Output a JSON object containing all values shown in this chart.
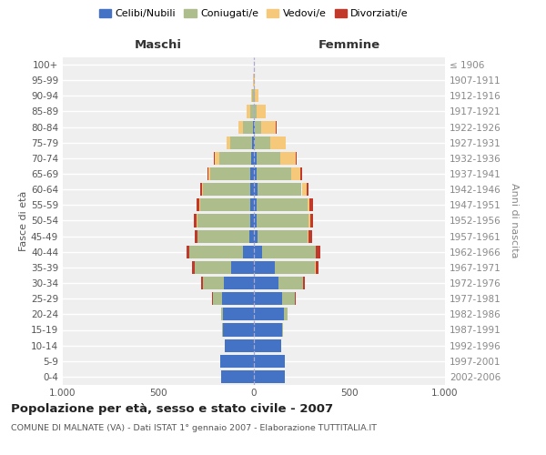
{
  "age_groups": [
    "100+",
    "95-99",
    "90-94",
    "85-89",
    "80-84",
    "75-79",
    "70-74",
    "65-69",
    "60-64",
    "55-59",
    "50-54",
    "45-49",
    "40-44",
    "35-39",
    "30-34",
    "25-29",
    "20-24",
    "15-19",
    "10-14",
    "5-9",
    "0-4"
  ],
  "birth_years": [
    "≤ 1906",
    "1907-1911",
    "1912-1916",
    "1917-1921",
    "1922-1926",
    "1927-1931",
    "1932-1936",
    "1937-1941",
    "1942-1946",
    "1947-1951",
    "1952-1956",
    "1957-1961",
    "1962-1966",
    "1967-1971",
    "1972-1976",
    "1977-1981",
    "1982-1986",
    "1987-1991",
    "1992-1996",
    "1997-2001",
    "2002-2006"
  ],
  "males_celibi": [
    0,
    0,
    1,
    2,
    5,
    8,
    12,
    18,
    20,
    18,
    18,
    25,
    58,
    118,
    155,
    168,
    162,
    163,
    152,
    178,
    172
  ],
  "males_coniugati": [
    0,
    2,
    8,
    18,
    52,
    115,
    170,
    210,
    248,
    265,
    278,
    268,
    278,
    192,
    112,
    48,
    10,
    2,
    0,
    0,
    0
  ],
  "males_vedovi": [
    0,
    1,
    6,
    18,
    22,
    18,
    22,
    8,
    4,
    2,
    2,
    2,
    0,
    0,
    0,
    0,
    0,
    0,
    0,
    0,
    0
  ],
  "males_divorziati": [
    0,
    0,
    0,
    0,
    0,
    2,
    5,
    8,
    10,
    14,
    14,
    14,
    18,
    14,
    8,
    2,
    0,
    0,
    0,
    0,
    0
  ],
  "fem_nubili": [
    0,
    0,
    1,
    2,
    4,
    7,
    12,
    15,
    18,
    16,
    16,
    20,
    42,
    108,
    128,
    148,
    158,
    148,
    142,
    162,
    162
  ],
  "fem_coniugate": [
    0,
    1,
    5,
    10,
    33,
    78,
    128,
    182,
    232,
    265,
    272,
    262,
    282,
    212,
    128,
    68,
    17,
    2,
    0,
    0,
    0
  ],
  "fem_vedove": [
    0,
    4,
    18,
    48,
    78,
    82,
    78,
    48,
    24,
    10,
    5,
    5,
    2,
    2,
    2,
    0,
    0,
    0,
    0,
    0,
    0
  ],
  "fem_divorziate": [
    0,
    0,
    0,
    0,
    2,
    2,
    7,
    9,
    11,
    17,
    17,
    17,
    22,
    17,
    10,
    2,
    2,
    0,
    0,
    0,
    0
  ],
  "color_celibi": "#4472C4",
  "color_coniugati": "#ADBE8C",
  "color_vedovi": "#F5C87A",
  "color_divorziati": "#C0392B",
  "title": "Popolazione per età, sesso e stato civile - 2007",
  "subtitle": "COMUNE DI MALNATE (VA) - Dati ISTAT 1° gennaio 2007 - Elaborazione TUTTITALIA.IT",
  "maschi_label": "Maschi",
  "femmine_label": "Femmine",
  "ylabel_left": "Fasce di età",
  "ylabel_right": "Anni di nascita",
  "legend_labels": [
    "Celibi/Nubili",
    "Coniugati/e",
    "Vedovi/e",
    "Divorziati/e"
  ],
  "xlim": 1000,
  "bg_color": "#FFFFFF",
  "plot_bg_color": "#EFEFEF"
}
